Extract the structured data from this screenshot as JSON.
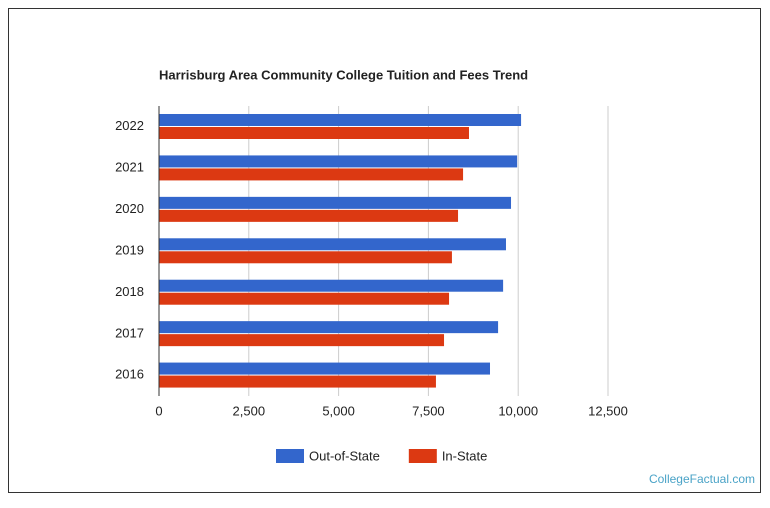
{
  "chart_data": {
    "type": "bar",
    "orientation": "horizontal",
    "title": "Harrisburg Area Community College Tuition and Fees Trend",
    "categories": [
      "2022",
      "2021",
      "2020",
      "2019",
      "2018",
      "2017",
      "2016"
    ],
    "series": [
      {
        "name": "Out-of-State",
        "color": "#3366cc",
        "values": [
          10080,
          9970,
          9800,
          9660,
          9580,
          9440,
          9215
        ]
      },
      {
        "name": "In-State",
        "color": "#dc3912",
        "values": [
          8630,
          8465,
          8325,
          8155,
          8075,
          7935,
          7710
        ]
      }
    ],
    "xlim": [
      0,
      12500
    ],
    "xticks": [
      0,
      {
        "value": 2500,
        "label": "2,500"
      },
      {
        "value": 5000,
        "label": "5,000"
      },
      {
        "value": 7500,
        "label": "7,500"
      },
      {
        "value": 10000,
        "label": "10,000"
      },
      {
        "value": 12500,
        "label": "12,500"
      }
    ],
    "grid": true,
    "legend": "bottom",
    "watermark": "CollegeFactual.com"
  }
}
